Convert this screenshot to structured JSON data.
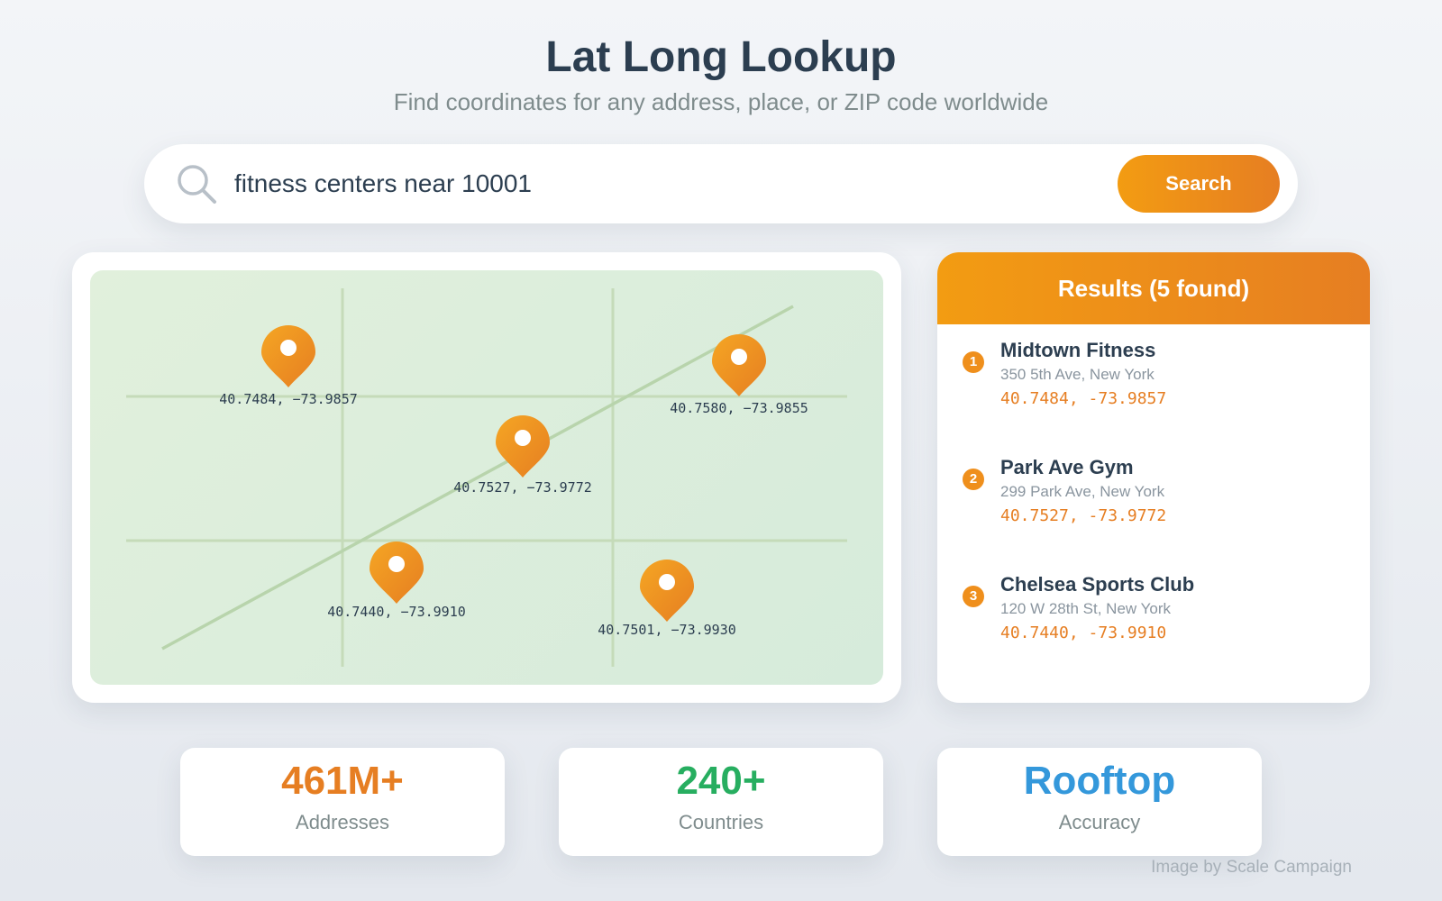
{
  "header": {
    "title": "Lat Long Lookup",
    "subtitle": "Find coordinates for any address, place, or ZIP code worldwide"
  },
  "search": {
    "value": "fitness centers near 10001",
    "button_label": "Search",
    "icon": "search-icon"
  },
  "map": {
    "pins": [
      {
        "label": "40.7484, −73.9857"
      },
      {
        "label": "40.7580, −73.9855"
      },
      {
        "label": "40.7527, −73.9772"
      },
      {
        "label": "40.7440, −73.9910"
      },
      {
        "label": "40.7501, −73.9930"
      }
    ],
    "colors": {
      "pin": "#f39c12",
      "pin_dark": "#e67e22",
      "road": "#b8d4ac"
    }
  },
  "results": {
    "header": "Results (5 found)",
    "items": [
      {
        "num": "1",
        "name": "Midtown Fitness",
        "address": "350 5th Ave, New York",
        "coords": "40.7484, -73.9857"
      },
      {
        "num": "2",
        "name": "Park Ave Gym",
        "address": "299 Park Ave, New York",
        "coords": "40.7527, -73.9772"
      },
      {
        "num": "3",
        "name": "Chelsea Sports Club",
        "address": "120 W 28th St, New York",
        "coords": "40.7440, -73.9910"
      }
    ]
  },
  "stats": [
    {
      "value": "461M+",
      "label": "Addresses",
      "color": "#e67e22"
    },
    {
      "value": "240+",
      "label": "Countries",
      "color": "#27ae60"
    },
    {
      "value": "Rooftop",
      "label": "Accuracy",
      "color": "#3498db"
    }
  ],
  "footer": {
    "credit": "Image by Scale Campaign"
  }
}
